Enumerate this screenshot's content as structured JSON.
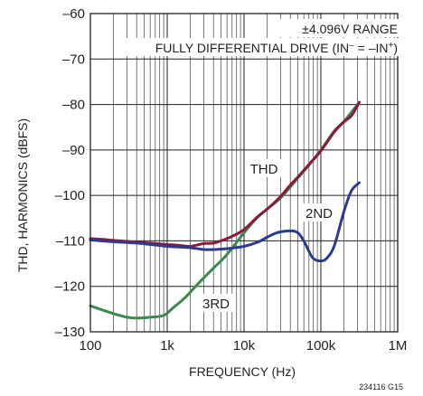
{
  "chart_data": {
    "type": "line",
    "x_scale": "log",
    "xlim": [
      100,
      1000000
    ],
    "ylim": [
      -130,
      -60
    ],
    "grid": true,
    "xlabel": "FREQUENCY (Hz)",
    "ylabel": "THD, HARMONICS (dBFS)",
    "x_ticks": [
      100,
      1000,
      10000,
      100000,
      1000000
    ],
    "x_tick_labels": [
      "100",
      "1k",
      "10k",
      "100k",
      "1M"
    ],
    "y_ticks": [
      -60,
      -70,
      -80,
      -90,
      -100,
      -110,
      -120,
      -130
    ],
    "y_tick_labels": [
      "–60",
      "–70",
      "–80",
      "–90",
      "–100",
      "–110",
      "–120",
      "–130"
    ],
    "annotations": [
      {
        "text": "±4.096V RANGE"
      },
      {
        "text": "FULLY DIFFERENTIAL DRIVE (IN",
        "sup1": "–",
        "mid": " = –IN",
        "sup2": "+",
        "end": ")"
      }
    ],
    "footnote": "234116 G15",
    "series": [
      {
        "name": "THD",
        "color": "#8b1a3a",
        "x": [
          100,
          150,
          200,
          300,
          400,
          600,
          1000,
          1500,
          2000,
          3000,
          4000,
          5000,
          7000,
          10000,
          15000,
          20000,
          30000,
          40000,
          50000,
          70000,
          100000,
          150000,
          200000,
          250000,
          316000
        ],
        "y": [
          -109.5,
          -109.7,
          -109.9,
          -110.1,
          -110.3,
          -110.5,
          -110.8,
          -111.0,
          -111.2,
          -110.6,
          -110.5,
          -110.0,
          -109.0,
          -107.5,
          -104.7,
          -103.0,
          -100.2,
          -97.7,
          -96.0,
          -93.2,
          -90.2,
          -86.0,
          -83.8,
          -82.5,
          -79.5
        ]
      },
      {
        "name": "2ND",
        "color": "#2b3b8f",
        "x": [
          100,
          200,
          400,
          700,
          1000,
          2000,
          3000,
          4000,
          6000,
          10000,
          15000,
          20000,
          25000,
          30000,
          40000,
          50000,
          60000,
          70000,
          80000,
          100000,
          120000,
          150000,
          200000,
          250000,
          316000
        ],
        "y": [
          -109.8,
          -110.2,
          -110.5,
          -110.9,
          -111.2,
          -111.5,
          -111.9,
          -111.9,
          -111.7,
          -111.2,
          -110.3,
          -109.2,
          -108.4,
          -108.0,
          -107.8,
          -108.2,
          -110.0,
          -112.3,
          -113.9,
          -114.4,
          -113.8,
          -111.0,
          -103.5,
          -99.0,
          -97.2
        ]
      },
      {
        "name": "3RD",
        "color": "#3a8a4c",
        "x": [
          100,
          150,
          200,
          300,
          400,
          600,
          900,
          1200,
          1700,
          2500,
          4000,
          6000,
          10000,
          15000,
          20000,
          30000,
          50000,
          70000,
          100000,
          150000,
          200000,
          316000
        ],
        "y": [
          -124.3,
          -125.3,
          -126.0,
          -126.8,
          -127.0,
          -126.8,
          -126.4,
          -124.7,
          -122.5,
          -119.5,
          -116.0,
          -113.0,
          -108.2,
          -104.8,
          -103.0,
          -100.5,
          -96.2,
          -93.3,
          -90.0,
          -85.8,
          -83.7,
          -79.5
        ]
      }
    ]
  }
}
